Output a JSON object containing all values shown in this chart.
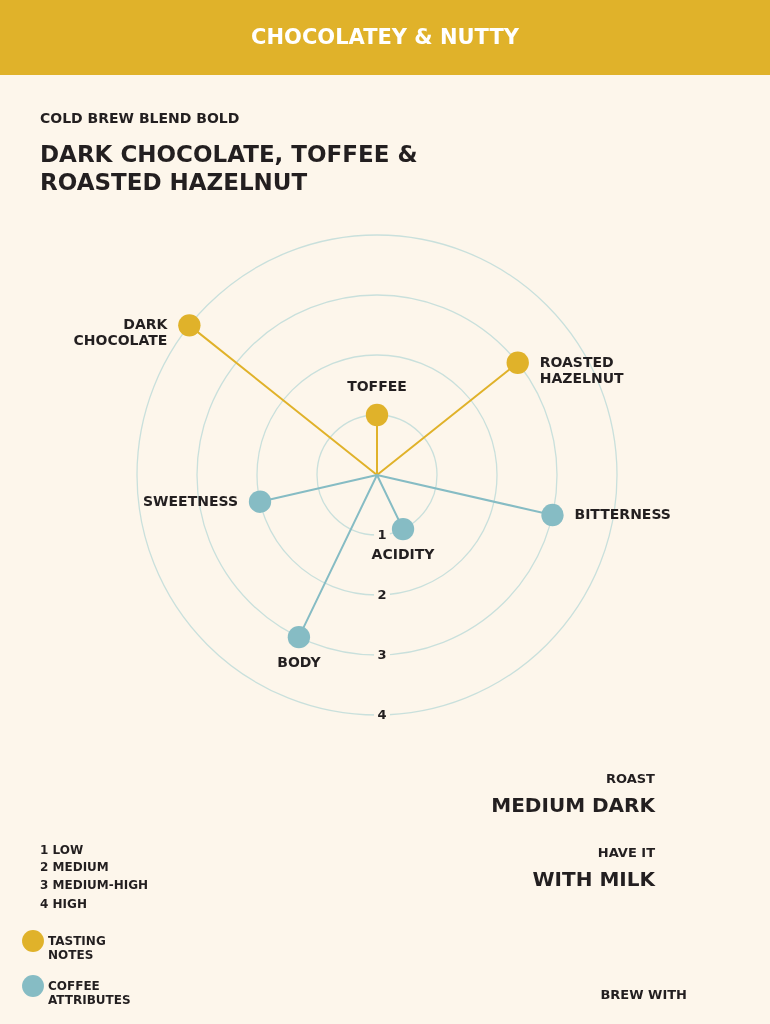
{
  "chart_data": {
    "type": "radar",
    "title": "DARK CHOCOLATE, TOFFEE &\nROASTED HAZELNUT",
    "subtitle": "COLD BREW BLEND BOLD",
    "categories": [
      "TOFFEE",
      "ROASTED HAZELNUT",
      "BITTERNESS",
      "ACIDITY",
      "BODY",
      "SWEETNESS",
      "DARK CHOCOLATE"
    ],
    "series": [
      {
        "name": "TASTING NOTES",
        "color": "#e0b22a",
        "values": [
          1,
          3,
          null,
          null,
          null,
          null,
          4
        ]
      },
      {
        "name": "COFFEE ATTRIBUTES",
        "color": "#86bcc4",
        "values": [
          null,
          null,
          3,
          1,
          3,
          2,
          null
        ]
      }
    ],
    "ylim": [
      0,
      4
    ],
    "yticks": [
      1,
      2,
      3,
      4
    ],
    "grid": true,
    "legend": "bottom left",
    "annotations": [
      "CHOCOLATEY & NUTTY",
      "1 LOW",
      "2 MEDIUM",
      "3 MEDIUM-HIGH",
      "4 HIGH",
      "ROAST",
      "MEDIUM DARK",
      "HAVE IT",
      "WITH MILK",
      "BREW WITH"
    ]
  }
}
